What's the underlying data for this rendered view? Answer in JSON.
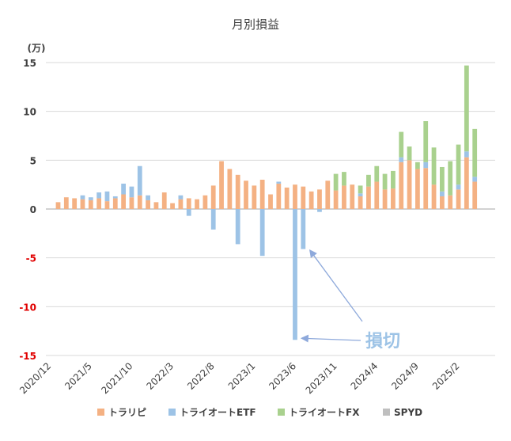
{
  "chart_data": {
    "type": "bar",
    "stacked": true,
    "title": "月別損益",
    "unit_label": "(万)",
    "xlabel": "",
    "ylabel": "",
    "ylim": [
      -15,
      15
    ],
    "y_ticks": [
      15,
      10,
      5,
      0,
      -5,
      -10,
      -15
    ],
    "grid": true,
    "legend_position": "bottom",
    "x_tick_labels": [
      "2020/12",
      "2021/5",
      "2021/10",
      "2022/3",
      "2022/8",
      "2023/1",
      "2023/6",
      "2023/11",
      "2024/4",
      "2024/9",
      "2025/2"
    ],
    "categories": [
      "2020/12",
      "2021/1",
      "2021/2",
      "2021/3",
      "2021/4",
      "2021/5",
      "2021/6",
      "2021/7",
      "2021/8",
      "2021/9",
      "2021/10",
      "2021/11",
      "2021/12",
      "2022/1",
      "2022/2",
      "2022/3",
      "2022/4",
      "2022/5",
      "2022/6",
      "2022/7",
      "2022/8",
      "2022/9",
      "2022/10",
      "2022/11",
      "2022/12",
      "2023/1",
      "2023/2",
      "2023/3",
      "2023/4",
      "2023/5",
      "2023/6",
      "2023/7",
      "2023/8",
      "2023/9",
      "2023/10",
      "2023/11",
      "2023/12",
      "2024/1",
      "2024/2",
      "2024/3",
      "2024/4",
      "2024/5",
      "2024/6",
      "2024/7",
      "2024/8",
      "2024/9",
      "2024/10",
      "2024/11",
      "2024/12",
      "2025/1",
      "2025/2",
      "2025/3",
      "2025/4",
      "2025/5",
      "2025/6"
    ],
    "series": [
      {
        "name": "トラリピ",
        "color": "#F4B183",
        "values": [
          0,
          0.7,
          1.2,
          1.1,
          1.0,
          0.9,
          1.1,
          0.8,
          1.1,
          1.5,
          1.2,
          1.4,
          0.9,
          0.7,
          1.7,
          0.6,
          1.0,
          1.1,
          1.0,
          1.4,
          2.4,
          4.9,
          4.1,
          3.5,
          2.9,
          2.4,
          3.0,
          1.5,
          2.6,
          2.2,
          2.5,
          2.3,
          1.8,
          2.0,
          2.9,
          1.9,
          2.4,
          2.5,
          1.3,
          2.3,
          2.8,
          2.0,
          2.1,
          4.8,
          5.0,
          4.1,
          4.2,
          2.5,
          1.3,
          1.4,
          2.0,
          5.3,
          2.8,
          0,
          0
        ]
      },
      {
        "name": "トライオートETF",
        "color": "#9DC3E6",
        "values": [
          0,
          0,
          0,
          0,
          0.4,
          0.3,
          0.6,
          1.0,
          0.2,
          1.1,
          1.1,
          3.0,
          0.5,
          0,
          0,
          0,
          0.4,
          -0.7,
          0,
          0,
          -2.1,
          0,
          0,
          -3.6,
          0,
          0,
          -4.8,
          0,
          0.2,
          0,
          -13.4,
          -4.1,
          0,
          -0.3,
          0,
          0,
          0,
          0,
          0.3,
          0,
          0,
          0,
          0,
          0.5,
          0,
          0,
          0.6,
          0,
          0.5,
          0,
          0.5,
          0.6,
          0.5,
          0,
          0
        ]
      },
      {
        "name": "トライオートFX",
        "color": "#A9D18E",
        "values": [
          0,
          0,
          0,
          0,
          0,
          0,
          0,
          0,
          0,
          0,
          0,
          0,
          0,
          0,
          0,
          0,
          0,
          0,
          0,
          0,
          0,
          0,
          0,
          0,
          0,
          0,
          0,
          0,
          0,
          0,
          0,
          0,
          0,
          0,
          0,
          1.7,
          1.4,
          0,
          0.8,
          1.2,
          1.6,
          1.6,
          1.8,
          2.6,
          1.4,
          0.7,
          4.2,
          3.8,
          2.5,
          3.5,
          4.1,
          8.8,
          4.9,
          0,
          0
        ]
      },
      {
        "name": "SPYD",
        "color": "#BFBFBF",
        "values": [
          0,
          0,
          0,
          0,
          0,
          0,
          0,
          0,
          0,
          0,
          0,
          0,
          0,
          0,
          0,
          0,
          0,
          0,
          0,
          0,
          0,
          0,
          0,
          0,
          0,
          0,
          0,
          0,
          0,
          0,
          0,
          0,
          0,
          0,
          0,
          0,
          0,
          0,
          0,
          0,
          0,
          0,
          0,
          0,
          0,
          0,
          0,
          0,
          0,
          0,
          0,
          0,
          0,
          0,
          0
        ]
      }
    ],
    "annotation": {
      "text": "損切",
      "color": "#9DC3E6",
      "arrow_color": "#8EA9DB",
      "arrow_targets": [
        "2023/6",
        "2023/7"
      ]
    }
  }
}
